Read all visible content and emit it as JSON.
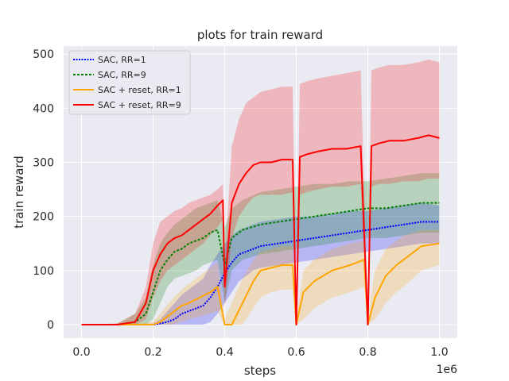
{
  "chart_data": {
    "type": "line",
    "title": "plots for train reward",
    "xlabel": "steps",
    "ylabel": "train reward",
    "x_offset_label": "1e6",
    "xlim": [
      -0.05,
      1.05
    ],
    "ylim": [
      -25,
      515
    ],
    "xticks": [
      0.0,
      0.2,
      0.4,
      0.6,
      0.8,
      1.0
    ],
    "xtick_labels": [
      "0.0",
      "0.2",
      "0.4",
      "0.6",
      "0.8",
      "1.0"
    ],
    "yticks": [
      0,
      100,
      200,
      300,
      400,
      500
    ],
    "ytick_labels": [
      "0",
      "100",
      "200",
      "300",
      "400",
      "500"
    ],
    "grid": true,
    "legend_position": "top-left",
    "series": [
      {
        "name": "SAC, RR=1",
        "color": "#0000ff",
        "style": "dotted",
        "x": [
          0.0,
          0.1,
          0.2,
          0.22,
          0.24,
          0.26,
          0.28,
          0.3,
          0.32,
          0.34,
          0.36,
          0.38,
          0.4,
          0.42,
          0.44,
          0.46,
          0.48,
          0.5,
          0.55,
          0.6,
          0.65,
          0.7,
          0.75,
          0.8,
          0.85,
          0.9,
          0.95,
          1.0
        ],
        "values": [
          0,
          0,
          0,
          2,
          5,
          10,
          20,
          25,
          30,
          35,
          50,
          70,
          95,
          115,
          130,
          135,
          140,
          145,
          150,
          155,
          160,
          165,
          170,
          175,
          180,
          185,
          190,
          190
        ],
        "band_upper": [
          0,
          0,
          2,
          10,
          25,
          40,
          55,
          65,
          75,
          85,
          110,
          130,
          150,
          165,
          175,
          180,
          185,
          190,
          195,
          200,
          200,
          205,
          210,
          210,
          215,
          220,
          225,
          220
        ],
        "band_lower": [
          0,
          0,
          0,
          0,
          0,
          0,
          0,
          0,
          0,
          0,
          5,
          20,
          40,
          60,
          80,
          90,
          100,
          105,
          110,
          115,
          120,
          125,
          130,
          135,
          140,
          145,
          150,
          150
        ]
      },
      {
        "name": "SAC, RR=9",
        "color": "#008000",
        "style": "dashed",
        "x": [
          0.0,
          0.1,
          0.15,
          0.18,
          0.2,
          0.22,
          0.24,
          0.26,
          0.28,
          0.3,
          0.32,
          0.34,
          0.36,
          0.38,
          0.4,
          0.42,
          0.45,
          0.5,
          0.55,
          0.6,
          0.65,
          0.7,
          0.75,
          0.8,
          0.85,
          0.9,
          0.95,
          1.0
        ],
        "values": [
          0,
          0,
          5,
          20,
          60,
          100,
          120,
          135,
          140,
          150,
          155,
          160,
          170,
          175,
          110,
          160,
          175,
          185,
          190,
          195,
          200,
          205,
          210,
          215,
          215,
          220,
          225,
          225
        ],
        "band_upper": [
          0,
          2,
          20,
          50,
          110,
          150,
          170,
          185,
          195,
          205,
          215,
          220,
          225,
          230,
          180,
          215,
          230,
          245,
          250,
          255,
          260,
          260,
          265,
          265,
          270,
          275,
          280,
          280
        ],
        "band_lower": [
          0,
          0,
          0,
          0,
          10,
          40,
          70,
          85,
          90,
          95,
          100,
          110,
          115,
          120,
          40,
          100,
          120,
          130,
          135,
          140,
          145,
          150,
          155,
          160,
          160,
          165,
          170,
          170
        ]
      },
      {
        "name": "SAC + reset, RR=1",
        "color": "#ffa500",
        "style": "solid",
        "x": [
          0.0,
          0.1,
          0.2,
          0.22,
          0.25,
          0.28,
          0.3,
          0.33,
          0.36,
          0.38,
          0.4,
          0.42,
          0.45,
          0.48,
          0.5,
          0.53,
          0.56,
          0.59,
          0.6,
          0.62,
          0.65,
          0.7,
          0.75,
          0.79,
          0.8,
          0.82,
          0.85,
          0.88,
          0.9,
          0.95,
          1.0
        ],
        "values": [
          0,
          0,
          0,
          5,
          20,
          35,
          40,
          50,
          60,
          70,
          0,
          0,
          40,
          80,
          100,
          105,
          110,
          110,
          0,
          60,
          80,
          100,
          110,
          120,
          0,
          50,
          90,
          110,
          120,
          145,
          150
        ],
        "band_upper": [
          0,
          0,
          5,
          20,
          45,
          65,
          75,
          90,
          105,
          115,
          10,
          40,
          85,
          120,
          135,
          140,
          145,
          145,
          10,
          100,
          120,
          140,
          150,
          155,
          10,
          100,
          140,
          155,
          165,
          175,
          175
        ],
        "band_lower": [
          0,
          0,
          0,
          0,
          0,
          5,
          10,
          15,
          20,
          25,
          0,
          0,
          0,
          30,
          50,
          60,
          65,
          65,
          0,
          10,
          30,
          50,
          60,
          70,
          0,
          10,
          40,
          60,
          70,
          100,
          110
        ]
      },
      {
        "name": "SAC + reset, RR=9",
        "color": "#ff0000",
        "style": "solid",
        "x": [
          0.0,
          0.1,
          0.15,
          0.18,
          0.2,
          0.22,
          0.24,
          0.26,
          0.28,
          0.3,
          0.32,
          0.34,
          0.36,
          0.38,
          0.395,
          0.4,
          0.42,
          0.44,
          0.46,
          0.48,
          0.5,
          0.53,
          0.56,
          0.59,
          0.6,
          0.61,
          0.63,
          0.66,
          0.7,
          0.74,
          0.78,
          0.8,
          0.81,
          0.83,
          0.86,
          0.9,
          0.94,
          0.97,
          1.0
        ],
        "values": [
          0,
          0,
          5,
          40,
          100,
          130,
          150,
          160,
          165,
          175,
          185,
          195,
          205,
          220,
          230,
          70,
          225,
          260,
          280,
          295,
          300,
          300,
          305,
          305,
          0,
          310,
          315,
          320,
          325,
          325,
          330,
          0,
          330,
          335,
          340,
          340,
          345,
          350,
          345
        ],
        "band_upper": [
          0,
          2,
          20,
          70,
          150,
          190,
          200,
          210,
          215,
          225,
          230,
          235,
          240,
          250,
          260,
          110,
          330,
          380,
          410,
          420,
          430,
          435,
          440,
          440,
          10,
          445,
          450,
          455,
          460,
          465,
          470,
          10,
          470,
          475,
          480,
          480,
          485,
          490,
          485
        ],
        "band_lower": [
          0,
          0,
          0,
          10,
          50,
          80,
          100,
          110,
          120,
          130,
          140,
          150,
          165,
          180,
          195,
          30,
          160,
          200,
          220,
          235,
          240,
          240,
          240,
          245,
          0,
          240,
          245,
          250,
          255,
          255,
          260,
          0,
          255,
          260,
          260,
          265,
          265,
          270,
          270
        ]
      }
    ]
  }
}
